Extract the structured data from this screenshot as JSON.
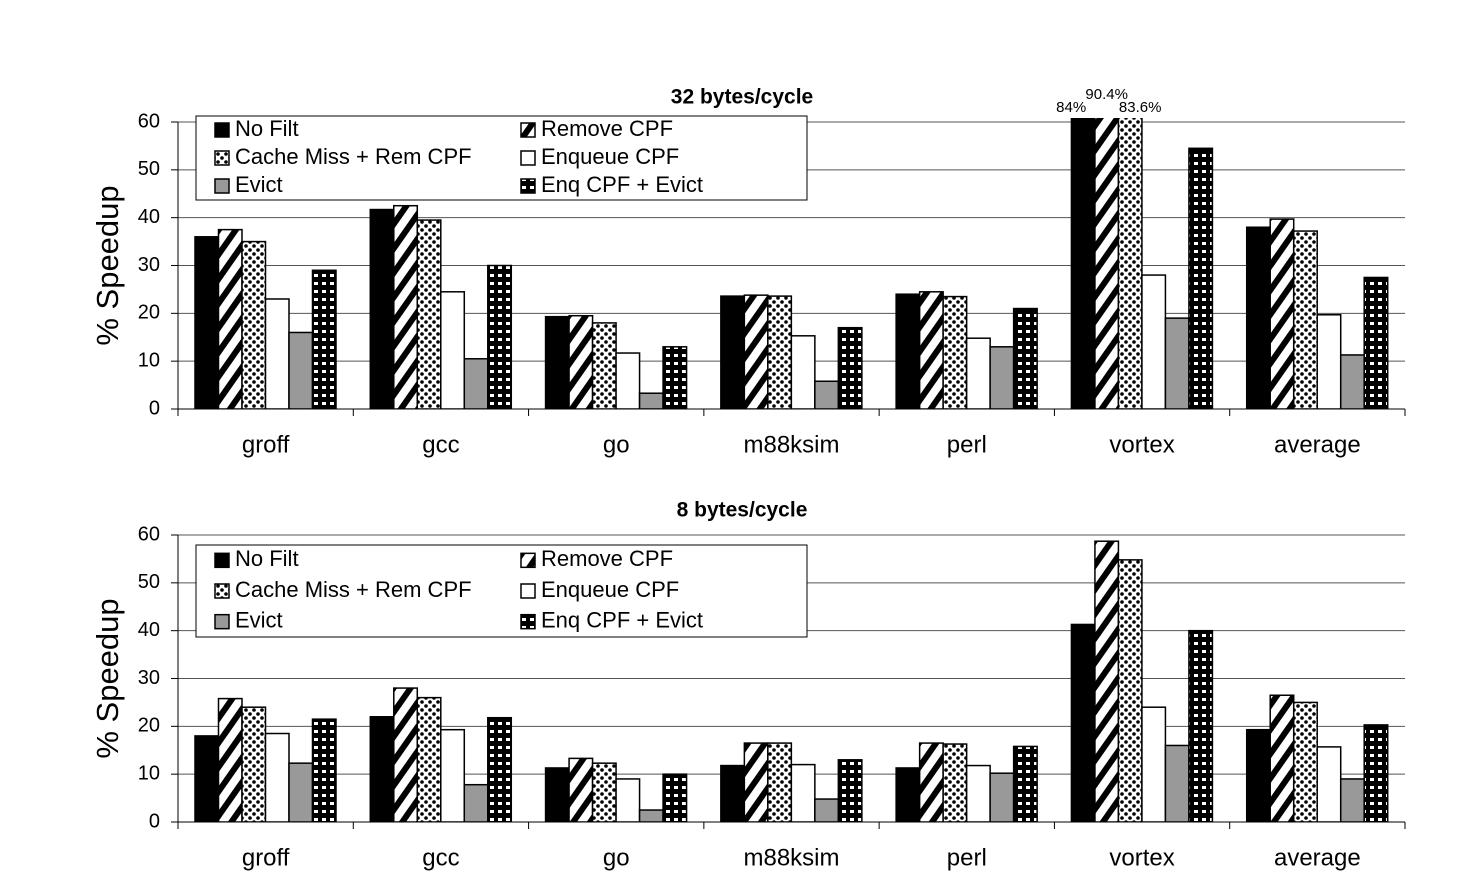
{
  "chart_data": [
    {
      "type": "bar",
      "title": "32 bytes/cycle",
      "y_label": "% Speedup",
      "categories": [
        "groff",
        "gcc",
        "go",
        "m88ksim",
        "perl",
        "vortex",
        "average"
      ],
      "ylim": [
        0,
        60
      ],
      "yticks": [
        0,
        10,
        20,
        30,
        40,
        50,
        60
      ],
      "grid": true,
      "legend": "top-left",
      "series": [
        {
          "name": "No Filt",
          "color": "#000000",
          "pattern": "solid",
          "values": [
            36,
            41.7,
            19.3,
            23.6,
            24,
            84,
            38
          ],
          "value_labels": [
            null,
            null,
            null,
            null,
            null,
            "84%",
            null
          ]
        },
        {
          "name": "Remove CPF",
          "color": "#000000",
          "pattern": "diagonal",
          "values": [
            37.5,
            42.5,
            19.5,
            23.8,
            24.5,
            90.4,
            39.7
          ],
          "value_labels": [
            null,
            null,
            null,
            null,
            null,
            "90.4%",
            null
          ]
        },
        {
          "name": "Cache Miss + Rem CPF",
          "color": "#000000",
          "pattern": "dots",
          "values": [
            35,
            39.5,
            18,
            23.6,
            23.5,
            83.6,
            37.2
          ],
          "value_labels": [
            null,
            null,
            null,
            null,
            null,
            "83.6%",
            null
          ]
        },
        {
          "name": "Enqueue CPF",
          "color": "#ffffff",
          "pattern": "solid",
          "values": [
            23,
            24.5,
            11.7,
            15.3,
            14.8,
            28,
            19.7
          ]
        },
        {
          "name": "Evict",
          "color": "#999999",
          "pattern": "solid",
          "values": [
            16,
            10.5,
            3.3,
            5.8,
            13,
            19,
            11.3
          ]
        },
        {
          "name": "Enq CPF + Evict",
          "color": "#000000",
          "pattern": "checker",
          "values": [
            29,
            30,
            13,
            17,
            21,
            54.5,
            27.5
          ]
        }
      ]
    },
    {
      "type": "bar",
      "title": "8 bytes/cycle",
      "y_label": "% Speedup",
      "categories": [
        "groff",
        "gcc",
        "go",
        "m88ksim",
        "perl",
        "vortex",
        "average"
      ],
      "ylim": [
        0,
        60
      ],
      "yticks": [
        0,
        10,
        20,
        30,
        40,
        50,
        60
      ],
      "grid": true,
      "legend": "top-left",
      "series": [
        {
          "name": "No Filt",
          "color": "#000000",
          "pattern": "solid",
          "values": [
            18,
            22,
            11.3,
            11.8,
            11.3,
            41.3,
            19.3
          ]
        },
        {
          "name": "Remove CPF",
          "color": "#000000",
          "pattern": "diagonal",
          "values": [
            25.8,
            28,
            13.3,
            16.5,
            16.5,
            58.7,
            26.5
          ]
        },
        {
          "name": "Cache Miss + Rem CPF",
          "color": "#000000",
          "pattern": "dots",
          "values": [
            24,
            26,
            12.3,
            16.5,
            16.3,
            54.8,
            25
          ]
        },
        {
          "name": "Enqueue CPF",
          "color": "#ffffff",
          "pattern": "solid",
          "values": [
            18.5,
            19.3,
            9,
            12,
            11.8,
            24,
            15.7
          ]
        },
        {
          "name": "Evict",
          "color": "#999999",
          "pattern": "solid",
          "values": [
            12.3,
            7.8,
            2.5,
            4.8,
            10.2,
            16,
            9
          ]
        },
        {
          "name": "Enq CPF + Evict",
          "color": "#000000",
          "pattern": "checker",
          "values": [
            21.5,
            21.8,
            10,
            13,
            15.8,
            40,
            20.3
          ]
        }
      ]
    }
  ]
}
